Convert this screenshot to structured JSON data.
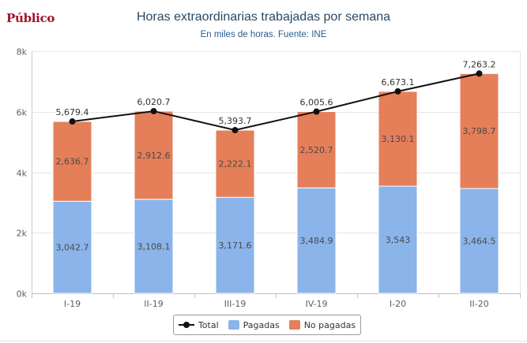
{
  "brand": "Público",
  "chart_data": {
    "type": "bar",
    "title": "Horas extraordinarias trabajadas por semana",
    "subtitle": "En miles de horas. Fuente: INE",
    "categories": [
      "I-19",
      "II-19",
      "III-19",
      "IV-19",
      "I-20",
      "II-20"
    ],
    "ylim": [
      0,
      8000
    ],
    "yticks": [
      {
        "value": 0,
        "label": "0k"
      },
      {
        "value": 2000,
        "label": "2k"
      },
      {
        "value": 4000,
        "label": "4k"
      },
      {
        "value": 6000,
        "label": "6k"
      },
      {
        "value": 8000,
        "label": "8k"
      }
    ],
    "stacked": true,
    "grid": true,
    "legend_position": "bottom",
    "series": [
      {
        "name": "Pagadas",
        "kind": "bar",
        "color": "#8ab4ea",
        "values": [
          3042.7,
          3108.1,
          3171.6,
          3484.9,
          3543,
          3464.5
        ],
        "labels": [
          "3,042.7",
          "3,108.1",
          "3,171.6",
          "3,484.9",
          "3,543",
          "3,464.5"
        ]
      },
      {
        "name": "No pagadas",
        "kind": "bar",
        "color": "#e47f5a",
        "values": [
          2636.7,
          2912.6,
          2222.1,
          2520.7,
          3130.1,
          3798.7
        ],
        "labels": [
          "2,636.7",
          "2,912.6",
          "2,222.1",
          "2,520.7",
          "3,130.1",
          "3,798.7"
        ]
      },
      {
        "name": "Total",
        "kind": "line",
        "color": "#111111",
        "values": [
          5679.4,
          6020.7,
          5393.7,
          6005.6,
          6673.1,
          7263.2
        ],
        "labels": [
          "5,679.4",
          "6,020.7",
          "5,393.7",
          "6,005.6",
          "6,673.1",
          "7,263.2"
        ]
      }
    ]
  }
}
